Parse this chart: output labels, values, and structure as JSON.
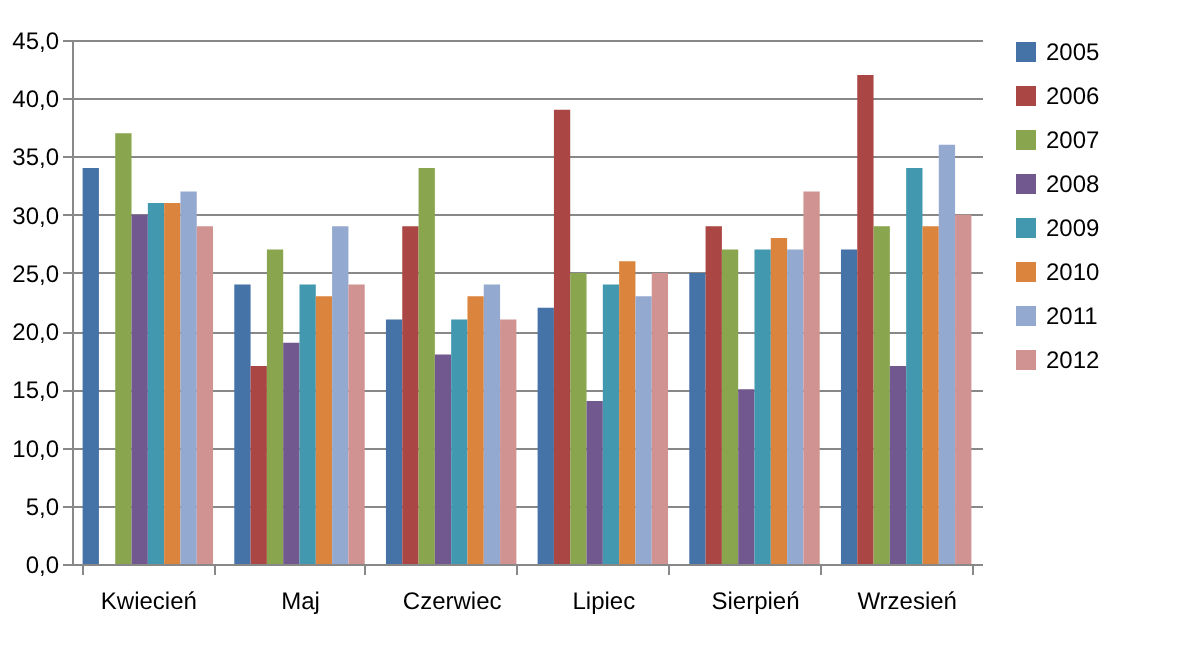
{
  "chart_data": {
    "type": "bar",
    "categories": [
      "Kwiecień",
      "Maj",
      "Czerwiec",
      "Lipiec",
      "Sierpień",
      "Wrzesień"
    ],
    "series": [
      {
        "name": "2005",
        "color": "#4572a7",
        "values": [
          34,
          24,
          21,
          22,
          25,
          27
        ]
      },
      {
        "name": "2006",
        "color": "#aa4643",
        "values": [
          0,
          17,
          29,
          39,
          29,
          42
        ]
      },
      {
        "name": "2007",
        "color": "#89a54e",
        "values": [
          37,
          27,
          34,
          25,
          27,
          29
        ]
      },
      {
        "name": "2008",
        "color": "#71588f",
        "values": [
          30,
          19,
          18,
          14,
          15,
          17
        ]
      },
      {
        "name": "2009",
        "color": "#4198af",
        "values": [
          31,
          24,
          21,
          24,
          27,
          34
        ]
      },
      {
        "name": "2010",
        "color": "#db843d",
        "values": [
          31,
          23,
          23,
          26,
          28,
          29
        ]
      },
      {
        "name": "2011",
        "color": "#93a9cf",
        "values": [
          32,
          29,
          24,
          23,
          27,
          36
        ]
      },
      {
        "name": "2012",
        "color": "#d19392",
        "values": [
          29,
          24,
          21,
          25,
          32,
          30
        ]
      }
    ],
    "ylim": [
      0,
      45
    ],
    "yticks": [
      {
        "value": 0,
        "label": "0,0"
      },
      {
        "value": 5,
        "label": "5,0"
      },
      {
        "value": 10,
        "label": "10,0"
      },
      {
        "value": 15,
        "label": "15,0"
      },
      {
        "value": 20,
        "label": "20,0"
      },
      {
        "value": 25,
        "label": "25,0"
      },
      {
        "value": 30,
        "label": "30,0"
      },
      {
        "value": 35,
        "label": "35,0"
      },
      {
        "value": 40,
        "label": "40,0"
      },
      {
        "value": 45,
        "label": "45,0"
      }
    ],
    "grid": true,
    "legend": "right"
  }
}
